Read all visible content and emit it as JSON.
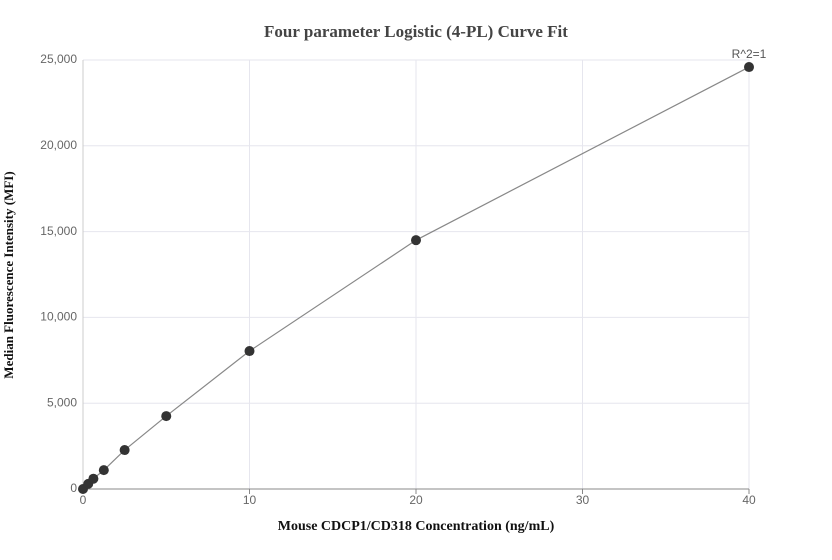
{
  "chart_data": {
    "type": "scatter",
    "title": "Four parameter Logistic (4-PL) Curve Fit",
    "xlabel": "Mouse CDCP1/CD318 Concentration (ng/mL)",
    "ylabel": "Median Fluorescence Intensity (MFI)",
    "annotation": "R^2=1",
    "x": [
      0,
      0.3125,
      0.625,
      1.25,
      2.5,
      5,
      10,
      20,
      40
    ],
    "series": [
      {
        "values": [
          0,
          300,
          600,
          1100,
          2270,
          4250,
          8040,
          14500,
          24590
        ],
        "color": "#333333",
        "line_color": "#888888"
      }
    ],
    "xlim": [
      0,
      40
    ],
    "xticks": [
      0,
      10,
      20,
      30,
      40
    ],
    "ylim": [
      0,
      25000
    ],
    "yticks": [
      0,
      {
        "value": 5000,
        "label": "5,000"
      },
      {
        "value": 10000,
        "label": "10,000"
      },
      {
        "value": 15000,
        "label": "15,000"
      },
      {
        "value": 20000,
        "label": "20,000"
      },
      {
        "value": 25000,
        "label": "25,000"
      }
    ],
    "grid": true
  }
}
